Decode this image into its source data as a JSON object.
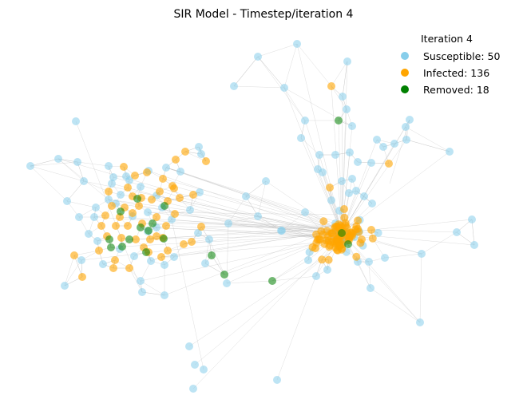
{
  "title": "SIR Model - Timestep/iteration 4",
  "legend": {
    "title": "Iteration 4",
    "entries": [
      {
        "key": "susceptible",
        "label": "Susceptible: 50",
        "color": "#87ceeb"
      },
      {
        "key": "infected",
        "label": "Infected: 136",
        "color": "#ffa500"
      },
      {
        "key": "removed",
        "label": "Removed: 18",
        "color": "#008000"
      }
    ]
  },
  "colors": {
    "susceptible": "#87ceeb",
    "infected": "#ffa500",
    "removed": "#008000",
    "edge": "#b9b9b9"
  }
}
